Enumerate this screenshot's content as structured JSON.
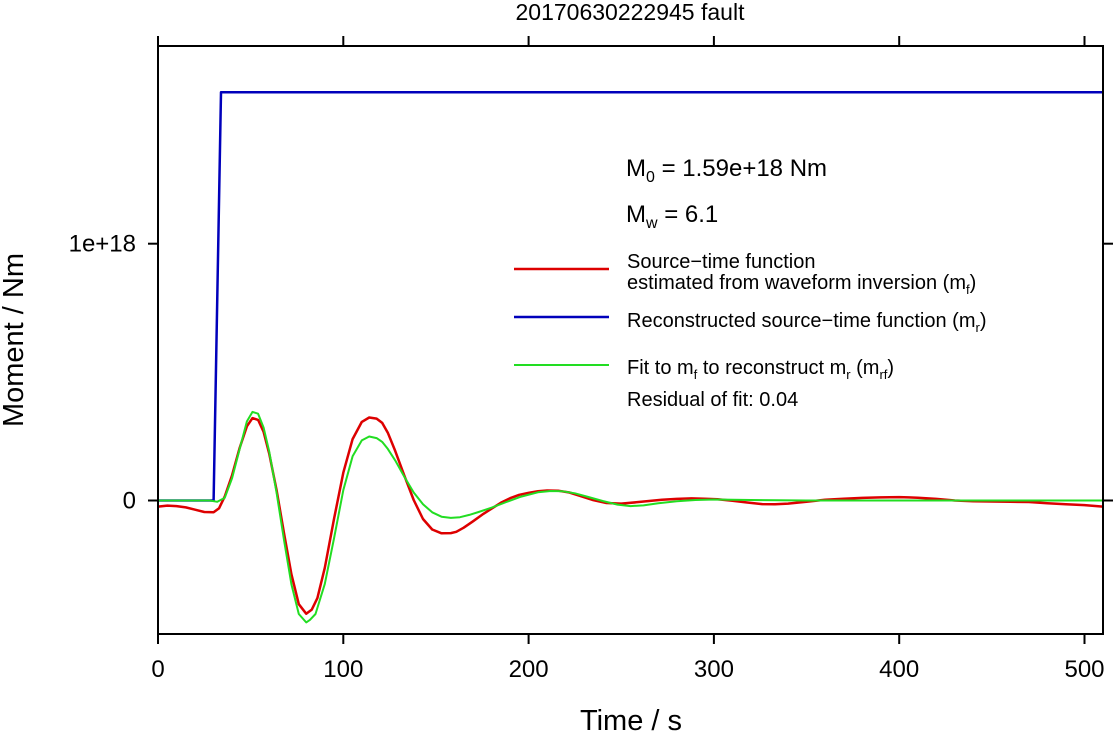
{
  "chart_data": {
    "type": "line",
    "title": "20170630222945 fault",
    "xlabel": "Time / s",
    "ylabel": "Moment / Nm",
    "xlim": [
      0,
      510
    ],
    "ylim": [
      -5.2e+17,
      1.77e+18
    ],
    "grid": false,
    "x_ticks": [
      0,
      100,
      200,
      300,
      400,
      500
    ],
    "x_tick_labels": [
      "0",
      "100",
      "200",
      "300",
      "400",
      "500"
    ],
    "y_ticks": [
      0,
      1e+18
    ],
    "y_tick_labels": [
      "0",
      "1e+18"
    ],
    "annotations": {
      "m0_symbol": "M",
      "m0_sub": "0",
      "m0_value": " = 1.59e+18 Nm",
      "mw_symbol": "M",
      "mw_sub": "w",
      "mw_value": " = 6.1",
      "residual": "Residual of fit: 0.04"
    },
    "legend": {
      "placement": "right",
      "entries": [
        {
          "color": "#dd0000",
          "line1": "Source−time function",
          "line2_text": "estimated from waveform inversion (m",
          "line2_sub": "f",
          "line2_end": ")"
        },
        {
          "color": "#0000bb",
          "text": "Reconstructed source−time function (m",
          "sub": "r",
          "end": ")"
        },
        {
          "color": "#22dd22",
          "t1": "Fit to m",
          "s1": "f",
          "t2": " to reconstruct m",
          "s2": "r",
          "t3": " (m",
          "s3": "rf",
          "t4": ")"
        }
      ]
    },
    "series": [
      {
        "color": "#0000bb",
        "x": [
          0,
          30,
          34,
          510
        ],
        "y": [
          0,
          0,
          1.59e+18,
          1.59e+18
        ]
      },
      {
        "color": "#dd0000",
        "x": [
          0,
          5,
          10,
          15,
          20,
          25,
          30,
          33,
          36,
          40,
          44,
          48,
          51,
          54,
          57,
          60,
          64,
          68,
          72,
          76,
          80,
          83,
          86,
          90,
          95,
          100,
          105,
          110,
          114,
          118,
          121,
          124,
          128,
          133,
          138,
          143,
          148,
          153,
          158,
          161,
          165,
          170,
          175,
          180,
          185,
          190,
          195,
          200,
          205,
          210,
          216,
          222,
          228,
          235,
          242,
          250,
          258,
          265,
          272,
          280,
          288,
          295,
          302,
          310,
          318,
          326,
          333,
          340,
          350,
          360,
          370,
          380,
          390,
          400,
          405,
          410,
          420,
          430,
          440,
          450,
          460,
          470,
          480,
          490,
          500,
          510
        ],
        "y": [
          -2.4e+16,
          -2e+16,
          -2.2e+16,
          -2.7e+16,
          -3.6e+16,
          -4.5e+16,
          -4.6e+16,
          -3e+16,
          1.5e+16,
          9.9e+16,
          2.03e+17,
          2.89e+17,
          3.21e+17,
          3.14e+17,
          2.67e+17,
          1.83e+17,
          4e+16,
          -1.27e+17,
          -2.87e+17,
          -4.04e+17,
          -4.41e+17,
          -4.25e+17,
          -3.8e+17,
          -2.62e+17,
          -7.2e+16,
          1.08e+17,
          2.39e+17,
          3.06e+17,
          3.23e+17,
          3.19e+17,
          3.02e+17,
          2.64e+17,
          1.93e+17,
          9.6e+16,
          2000000000000000.0,
          -7.2e+16,
          -1.13e+17,
          -1.28e+17,
          -1.27e+17,
          -1.22e+17,
          -1.06e+17,
          -8.1e+16,
          -5.5e+16,
          -3.2e+16,
          -9000000000000000.0,
          9000000000000000.0,
          2.2e+16,
          3e+16,
          3.6e+16,
          3.9e+16,
          3.8e+16,
          3.1e+16,
          1.7e+16,
          1000000000000000.0,
          -1e+16,
          -1.2e+16,
          -7000000000000000.0,
          -2000000000000000.0,
          3000000000000000.0,
          6000000000000000.0,
          8000000000000000.0,
          7000000000000000.0,
          5000000000000000.0,
          -1000000000000000.0,
          -8000000000000000.0,
          -1.4e+16,
          -1.5e+16,
          -1.2e+16,
          -5000000000000000.0,
          3000000000000000.0,
          7000000000000000.0,
          1e+16,
          1.2e+16,
          1.3e+16,
          1.2e+16,
          1.1e+16,
          6000000000000000.0,
          0,
          -3000000000000000.0,
          -4000000000000000.0,
          -5000000000000000.0,
          -6000000000000000.0,
          -1.1e+16,
          -1.5e+16,
          -1.8e+16,
          -2.4e+16
        ]
      },
      {
        "color": "#22dd22",
        "x": [
          0,
          10,
          20,
          28,
          32,
          36,
          40,
          44,
          48,
          51,
          54,
          57,
          60,
          64,
          68,
          72,
          76,
          80,
          82,
          85,
          90,
          95,
          100,
          105,
          110,
          114,
          118,
          121,
          124,
          128,
          133,
          138,
          143,
          148,
          153,
          158,
          163,
          168,
          173,
          180,
          188,
          196,
          205,
          212,
          218,
          225,
          232,
          240,
          248,
          255,
          262,
          270,
          280,
          290,
          300,
          310,
          320,
          335,
          350,
          370,
          390,
          410,
          430,
          450,
          470,
          490,
          510
        ],
        "y": [
          0,
          0,
          0,
          0,
          -5000000000000000.0,
          1e+16,
          8.7e+16,
          1.98e+17,
          3.08e+17,
          3.45e+17,
          3.38e+17,
          2.84e+17,
          1.91e+17,
          3e+16,
          -1.54e+17,
          -3.26e+17,
          -4.42e+17,
          -4.75e+17,
          -4.65e+17,
          -4.42e+17,
          -3.25e+17,
          -1.48e+17,
          4e+16,
          1.72e+17,
          2.34e+17,
          2.49e+17,
          2.43e+17,
          2.28e+17,
          2.01e+17,
          1.56e+17,
          9.2e+16,
          3.1e+16,
          -1.5e+16,
          -4.6e+16,
          -6.3e+16,
          -6.8e+16,
          -6.5e+16,
          -5.6e+16,
          -4.5e+16,
          -2.8e+16,
          -6000000000000000.0,
          1.5e+16,
          3.2e+16,
          3.7e+16,
          3.6e+16,
          2.8e+16,
          1.4e+16,
          -2000000000000000.0,
          -1.6e+16,
          -2.2e+16,
          -1.9e+16,
          -1.1e+16,
          -3000000000000000.0,
          2000000000000000.0,
          4000000000000000.0,
          3000000000000000.0,
          2000000000000000.0,
          1000000000000000.0,
          0,
          0,
          0,
          0,
          0,
          0,
          0,
          0,
          0
        ]
      }
    ]
  }
}
